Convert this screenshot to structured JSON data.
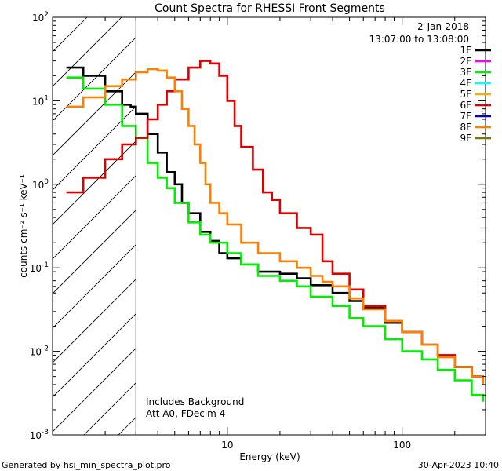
{
  "chart_data": {
    "type": "line",
    "title": "Count Spectra for RHESSI Front Segments",
    "xlabel": "Energy (keV)",
    "ylabel": "counts cm⁻² s⁻¹ keV⁻¹",
    "xscale": "log",
    "yscale": "log",
    "xlim": [
      1.0,
      300.0
    ],
    "ylim": [
      0.001,
      100.0
    ],
    "xticks": [
      {
        "value": 10,
        "label": "10"
      },
      {
        "value": 100,
        "label": "100"
      }
    ],
    "yticks": [
      {
        "value": 0.001,
        "base": "10",
        "exp": "-3"
      },
      {
        "value": 0.01,
        "base": "10",
        "exp": "-2"
      },
      {
        "value": 0.1,
        "base": "10",
        "exp": "-1"
      },
      {
        "value": 1,
        "base": "10",
        "exp": "0"
      },
      {
        "value": 10,
        "base": "10",
        "exp": "1"
      },
      {
        "value": 100,
        "base": "10",
        "exp": "2"
      }
    ],
    "date": "2-Jan-2018",
    "time_range": "13:07:00 to 13:08:00",
    "hatched_region_kev": [
      1.0,
      3.0
    ],
    "legend": [
      {
        "name": "1F",
        "color": "#000000"
      },
      {
        "name": "2F",
        "color": "#ff00ff"
      },
      {
        "name": "3F",
        "color": "#00ee00"
      },
      {
        "name": "4F",
        "color": "#00ffff"
      },
      {
        "name": "5F",
        "color": "#ffaa00"
      },
      {
        "name": "6F",
        "color": "#dd0000"
      },
      {
        "name": "7F",
        "color": "#0000cc"
      },
      {
        "name": "8F",
        "color": "#ff7f00"
      },
      {
        "name": "9F",
        "color": "#777700"
      }
    ],
    "annotations": [
      "Includes Background",
      "Att A0, FDecim 4"
    ],
    "series": [
      {
        "name": "1F",
        "color": "#000000",
        "points": [
          [
            1.2,
            25
          ],
          [
            1.5,
            20
          ],
          [
            2,
            13
          ],
          [
            2.5,
            9
          ],
          [
            2.8,
            8.5
          ],
          [
            3,
            7
          ],
          [
            3.5,
            4
          ],
          [
            4,
            2.4
          ],
          [
            4.5,
            1.4
          ],
          [
            5,
            1.0
          ],
          [
            5.5,
            0.6
          ],
          [
            6,
            0.45
          ],
          [
            7,
            0.27
          ],
          [
            8,
            0.21
          ],
          [
            9,
            0.15
          ],
          [
            10,
            0.13
          ],
          [
            12,
            0.11
          ],
          [
            15,
            0.09
          ],
          [
            20,
            0.085
          ],
          [
            25,
            0.075
          ],
          [
            30,
            0.062
          ],
          [
            40,
            0.05
          ],
          [
            50,
            0.04
          ],
          [
            60,
            0.033
          ],
          [
            80,
            0.022
          ],
          [
            100,
            0.017
          ],
          [
            130,
            0.012
          ],
          [
            160,
            0.009
          ],
          [
            200,
            0.0065
          ],
          [
            250,
            0.005
          ],
          [
            290,
            0.004
          ]
        ]
      },
      {
        "name": "3F",
        "color": "#00ee00",
        "points": [
          [
            1.2,
            19
          ],
          [
            1.5,
            14
          ],
          [
            2,
            9
          ],
          [
            2.5,
            5
          ],
          [
            3,
            3.6
          ],
          [
            3.5,
            1.8
          ],
          [
            4,
            1.2
          ],
          [
            4.5,
            0.9
          ],
          [
            5,
            0.6
          ],
          [
            6,
            0.35
          ],
          [
            7,
            0.25
          ],
          [
            8,
            0.2
          ],
          [
            10,
            0.15
          ],
          [
            12,
            0.11
          ],
          [
            15,
            0.08
          ],
          [
            20,
            0.07
          ],
          [
            25,
            0.06
          ],
          [
            30,
            0.045
          ],
          [
            40,
            0.035
          ],
          [
            50,
            0.025
          ],
          [
            60,
            0.02
          ],
          [
            80,
            0.014
          ],
          [
            100,
            0.01
          ],
          [
            130,
            0.008
          ],
          [
            160,
            0.006
          ],
          [
            200,
            0.0045
          ],
          [
            250,
            0.003
          ],
          [
            290,
            0.0025
          ]
        ]
      },
      {
        "name": "6F",
        "color": "#dd0000",
        "points": [
          [
            1.2,
            0.8
          ],
          [
            1.5,
            1.2
          ],
          [
            2,
            2
          ],
          [
            2.5,
            3
          ],
          [
            3,
            3.6
          ],
          [
            3.5,
            6
          ],
          [
            4,
            9
          ],
          [
            4.5,
            13
          ],
          [
            5,
            18
          ],
          [
            6,
            25
          ],
          [
            7,
            30
          ],
          [
            8,
            28
          ],
          [
            9,
            20
          ],
          [
            10,
            10
          ],
          [
            11,
            5
          ],
          [
            12,
            2.8
          ],
          [
            14,
            1.5
          ],
          [
            16,
            0.8
          ],
          [
            18,
            0.65
          ],
          [
            20,
            0.45
          ],
          [
            25,
            0.3
          ],
          [
            30,
            0.25
          ],
          [
            35,
            0.12
          ],
          [
            40,
            0.085
          ],
          [
            50,
            0.055
          ],
          [
            60,
            0.035
          ],
          [
            80,
            0.023
          ],
          [
            100,
            0.017
          ],
          [
            130,
            0.012
          ],
          [
            160,
            0.009
          ],
          [
            200,
            0.0065
          ],
          [
            250,
            0.005
          ],
          [
            290,
            0.004
          ]
        ]
      },
      {
        "name": "8F",
        "color": "#ff7f00",
        "points": [
          [
            1.2,
            8.5
          ],
          [
            1.5,
            11
          ],
          [
            2,
            15
          ],
          [
            2.5,
            18
          ],
          [
            3,
            22
          ],
          [
            3.5,
            24
          ],
          [
            4,
            23
          ],
          [
            4.5,
            19
          ],
          [
            5,
            13
          ],
          [
            5.5,
            8
          ],
          [
            6,
            5
          ],
          [
            6.5,
            3
          ],
          [
            7,
            1.8
          ],
          [
            7.5,
            1.0
          ],
          [
            8,
            0.6
          ],
          [
            9,
            0.45
          ],
          [
            10,
            0.33
          ],
          [
            12,
            0.2
          ],
          [
            15,
            0.15
          ],
          [
            20,
            0.12
          ],
          [
            25,
            0.1
          ],
          [
            30,
            0.08
          ],
          [
            35,
            0.068
          ],
          [
            40,
            0.06
          ],
          [
            50,
            0.043
          ],
          [
            60,
            0.032
          ],
          [
            80,
            0.023
          ],
          [
            100,
            0.017
          ],
          [
            130,
            0.012
          ],
          [
            160,
            0.0085
          ],
          [
            200,
            0.0065
          ],
          [
            250,
            0.005
          ],
          [
            290,
            0.004
          ]
        ]
      }
    ]
  },
  "footer": {
    "generated_by": "Generated by hsi_min_spectra_plot.pro",
    "timestamp": "30-Apr-2023 10:40"
  }
}
